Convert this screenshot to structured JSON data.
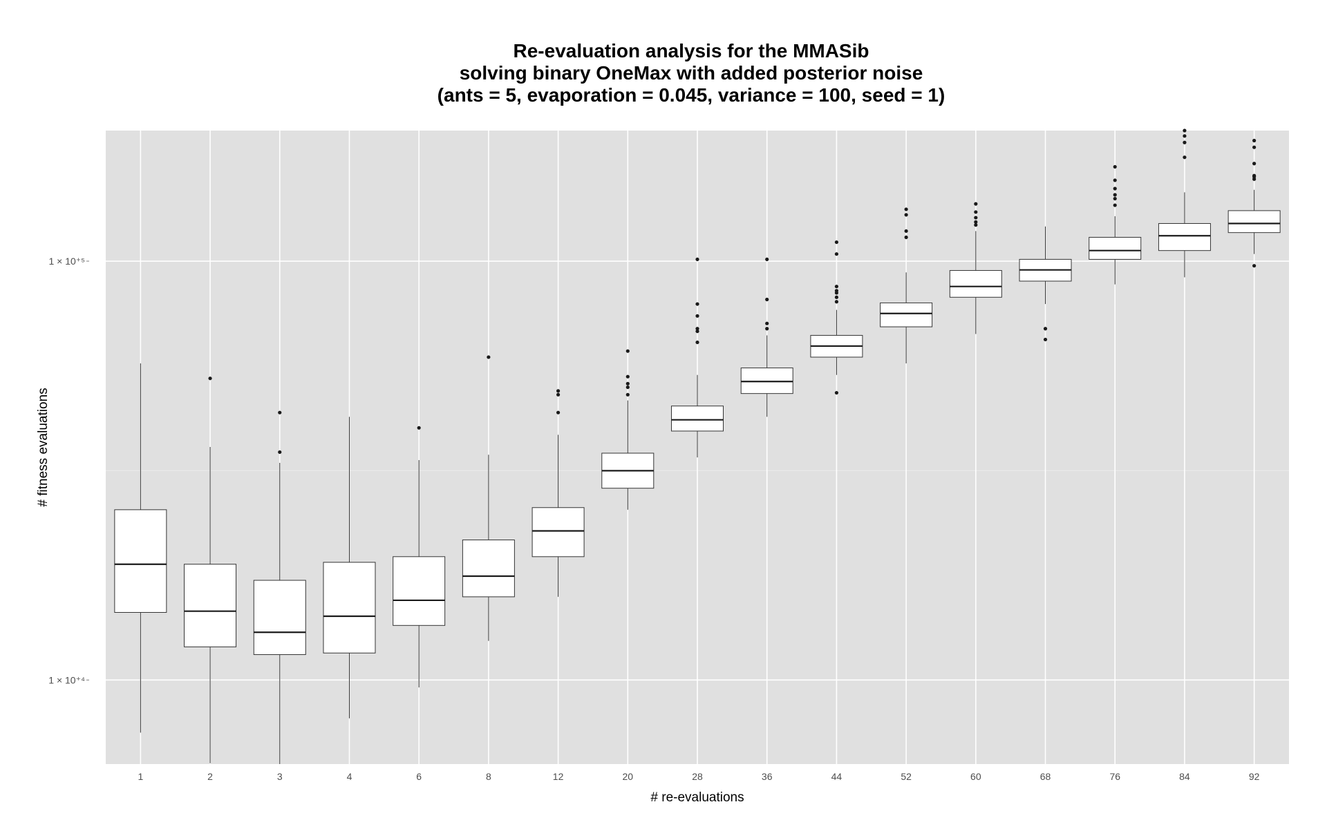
{
  "chart_data": {
    "type": "box",
    "title": [
      "Re-evaluation analysis for the MMASib",
      "solving binary OneMax with added posterior noise",
      "(ants = 5, evaporation = 0.045, variance = 100, seed = 1)"
    ],
    "xlabel": "# re-evaluations",
    "ylabel": "# fitness evaluations",
    "y_scale": "log10",
    "ylim": [
      6300,
      205000
    ],
    "y_ticks": [
      {
        "value": 10000,
        "label": "1 × 10⁺⁴"
      },
      {
        "value": 100000,
        "label": "1 × 10⁺⁵"
      }
    ],
    "grid": true,
    "background": "#e0e0e0",
    "categories": [
      "1",
      "2",
      "3",
      "4",
      "6",
      "8",
      "12",
      "20",
      "28",
      "36",
      "44",
      "52",
      "60",
      "68",
      "76",
      "84",
      "92"
    ],
    "boxes": [
      {
        "category": "1",
        "lower_whisker": 7490,
        "q1": 14500,
        "median": 18900,
        "q3": 25500,
        "upper_whisker": 57000,
        "outliers": []
      },
      {
        "category": "2",
        "lower_whisker": 6330,
        "q1": 12000,
        "median": 14600,
        "q3": 18900,
        "upper_whisker": 36000,
        "outliers": [
          52500
        ]
      },
      {
        "category": "3",
        "lower_whisker": 6300,
        "q1": 11500,
        "median": 13000,
        "q3": 17300,
        "upper_whisker": 33000,
        "outliers": [
          35000,
          43500
        ]
      },
      {
        "category": "4",
        "lower_whisker": 8100,
        "q1": 11600,
        "median": 14200,
        "q3": 19100,
        "upper_whisker": 42500,
        "outliers": []
      },
      {
        "category": "6",
        "lower_whisker": 9600,
        "q1": 13500,
        "median": 15500,
        "q3": 19700,
        "upper_whisker": 33500,
        "outliers": [
          40000
        ]
      },
      {
        "category": "8",
        "lower_whisker": 12400,
        "q1": 15800,
        "median": 17700,
        "q3": 21600,
        "upper_whisker": 34500,
        "outliers": [
          59000
        ]
      },
      {
        "category": "12",
        "lower_whisker": 15800,
        "q1": 19700,
        "median": 22700,
        "q3": 25800,
        "upper_whisker": 38500,
        "outliers": [
          43500,
          48000,
          49000
        ]
      },
      {
        "category": "20",
        "lower_whisker": 25500,
        "q1": 28700,
        "median": 31600,
        "q3": 34800,
        "upper_whisker": 46500,
        "outliers": [
          48000,
          50000,
          51000,
          53000,
          61000
        ]
      },
      {
        "category": "28",
        "lower_whisker": 34000,
        "q1": 39300,
        "median": 41800,
        "q3": 45100,
        "upper_whisker": 53500,
        "outliers": [
          64000,
          68000,
          69000,
          74000,
          79000,
          101000
        ]
      },
      {
        "category": "36",
        "lower_whisker": 42500,
        "q1": 48300,
        "median": 51600,
        "q3": 55600,
        "upper_whisker": 66500,
        "outliers": [
          69000,
          71000,
          81000,
          101000
        ]
      },
      {
        "category": "44",
        "lower_whisker": 53500,
        "q1": 59000,
        "median": 62700,
        "q3": 66500,
        "upper_whisker": 76500,
        "outliers": [
          48500,
          80000,
          82000,
          84000,
          85000,
          87000,
          104000,
          111000
        ]
      },
      {
        "category": "52",
        "lower_whisker": 57000,
        "q1": 69700,
        "median": 75000,
        "q3": 79500,
        "upper_whisker": 94000,
        "outliers": [
          114000,
          118000,
          129000,
          133000
        ]
      },
      {
        "category": "60",
        "lower_whisker": 67000,
        "q1": 82000,
        "median": 87000,
        "q3": 95000,
        "upper_whisker": 118000,
        "outliers": [
          122000,
          124000,
          127000,
          131000,
          137000
        ]
      },
      {
        "category": "68",
        "lower_whisker": 79000,
        "q1": 89600,
        "median": 95300,
        "q3": 101000,
        "upper_whisker": 121000,
        "outliers": [
          65000,
          69000
        ]
      },
      {
        "category": "76",
        "lower_whisker": 88000,
        "q1": 101000,
        "median": 106000,
        "q3": 114000,
        "upper_whisker": 128000,
        "outliers": [
          136000,
          141000,
          144000,
          149000,
          156000,
          168000
        ]
      },
      {
        "category": "84",
        "lower_whisker": 91500,
        "q1": 106000,
        "median": 115000,
        "q3": 123000,
        "upper_whisker": 146000,
        "outliers": [
          177000,
          192000,
          199000,
          205000
        ]
      },
      {
        "category": "92",
        "lower_whisker": 104000,
        "q1": 117000,
        "median": 123000,
        "q3": 132000,
        "upper_whisker": 148000,
        "outliers": [
          97500,
          157000,
          159000,
          160000,
          171000,
          187000,
          194000
        ]
      }
    ]
  }
}
